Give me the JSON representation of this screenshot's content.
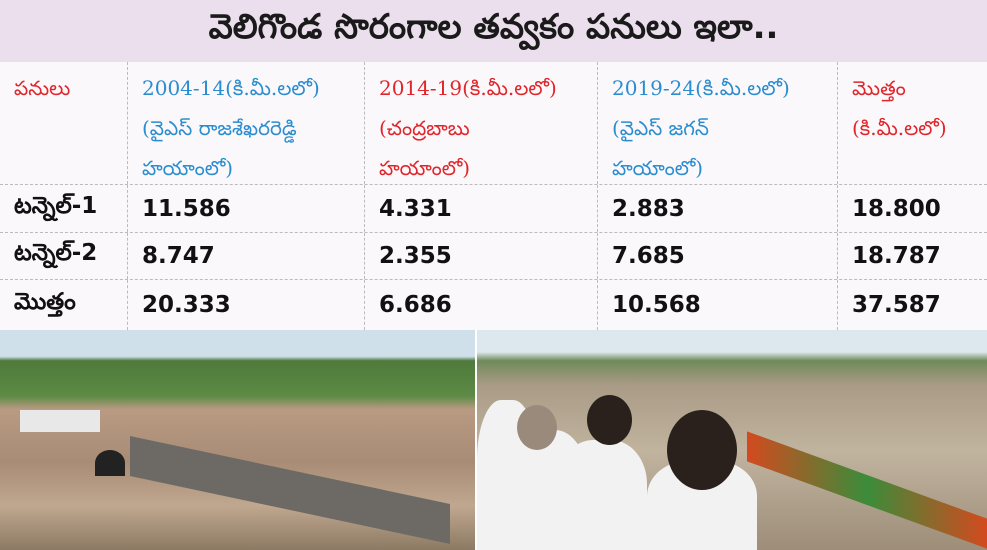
{
  "title": "వెలిగొండ సొరంగాల తవ్వకం పనులు ఇలా..",
  "headers": {
    "works": "పనులు",
    "p1_line1": "2004-14(కి.మీ.లలో)",
    "p1_line2": "(వైఎస్ రాజశేఖరరెడ్డి",
    "p1_line3": "హయాంలో)",
    "p2_line1": "2014-19(కి.మీ.లలో)",
    "p2_line2": "(చంద్రబాబు",
    "p2_line3": "హయాంలో)",
    "p3_line1": "2019-24(కి.మీ.లలో)",
    "p3_line2": "(వైఎస్ జగన్",
    "p3_line3": "హయాంలో)",
    "total_line1": "మొత్తం",
    "total_line2": "(కి.మీ.లలో)"
  },
  "rows": [
    {
      "label": "టన్నెల్-1",
      "p1": "11.586",
      "p2": "4.331",
      "p3": "2.883",
      "total": "18.800"
    },
    {
      "label": "టన్నెల్-2",
      "p1": "8.747",
      "p2": "2.355",
      "p3": "7.685",
      "total": "18.787"
    },
    {
      "label": "మొత్తం",
      "p1": "20.333",
      "p2": "6.686",
      "p3": "10.568",
      "total": "37.587"
    }
  ],
  "colors": {
    "title_bg": "#ebdfee",
    "blue": "#2a8dd0",
    "red": "#e0262b"
  }
}
